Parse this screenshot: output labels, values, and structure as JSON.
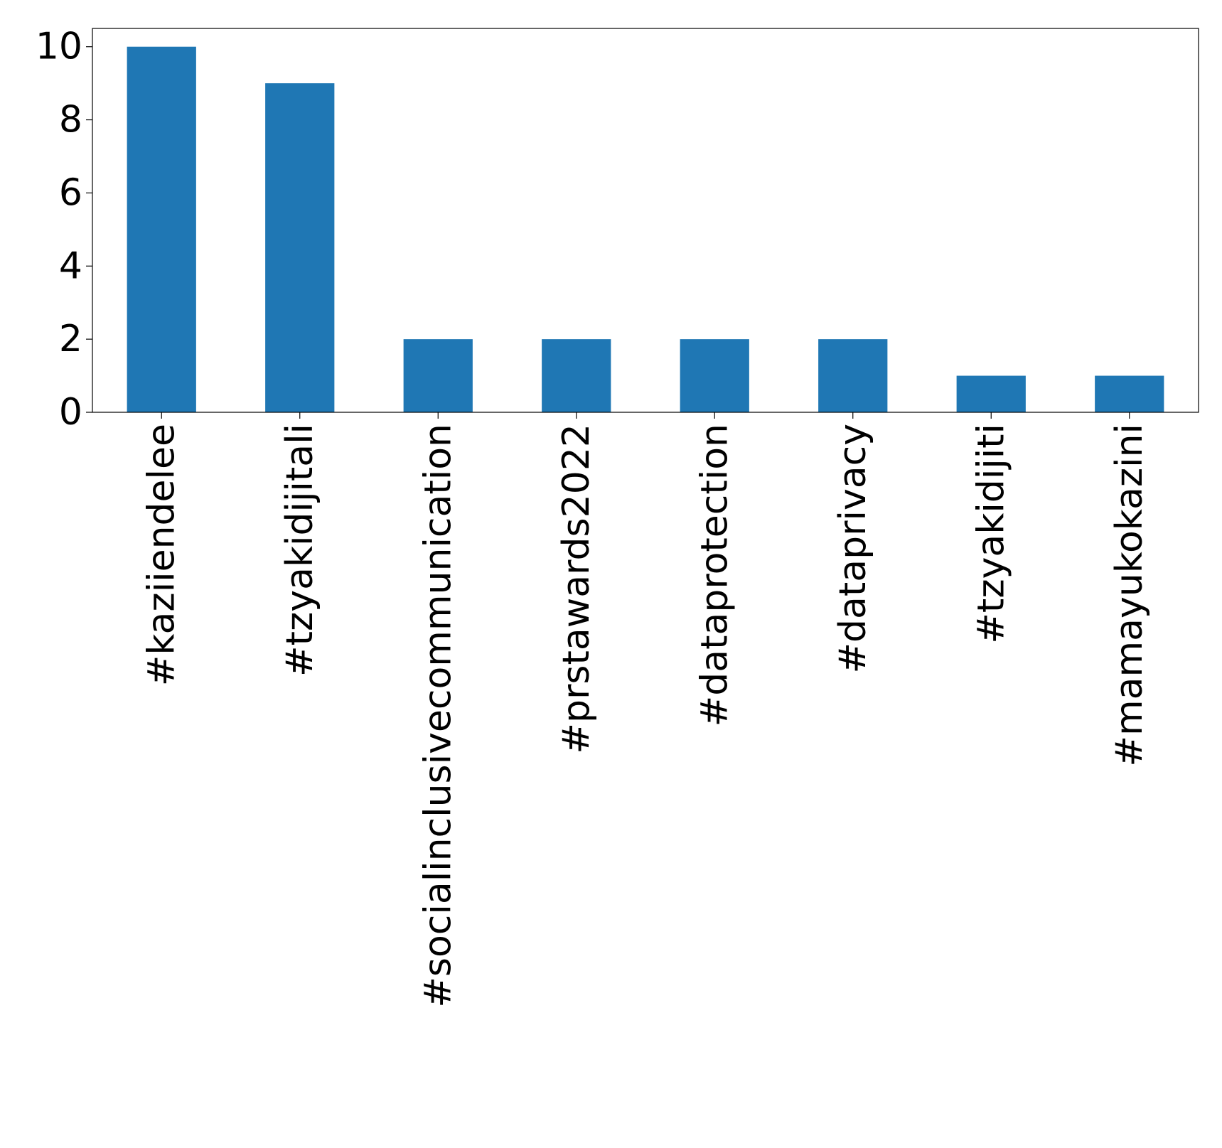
{
  "chart_data": {
    "type": "bar",
    "categories": [
      "#kaziiendelee",
      "#tzyakidijitali",
      "#socialinclusivecommunication",
      "#prstawards2022",
      "#dataprotection",
      "#dataprivacy",
      "#tzyakidijiti",
      "#mamayukokazini"
    ],
    "values": [
      10,
      9,
      2,
      2,
      2,
      2,
      1,
      1
    ],
    "ylim": [
      0,
      10.5
    ],
    "yticks": [
      0,
      2,
      4,
      6,
      8,
      10
    ],
    "title": "",
    "xlabel": "",
    "ylabel": "",
    "bar_color": "#1f77b4",
    "grid": false,
    "legend": "none"
  }
}
